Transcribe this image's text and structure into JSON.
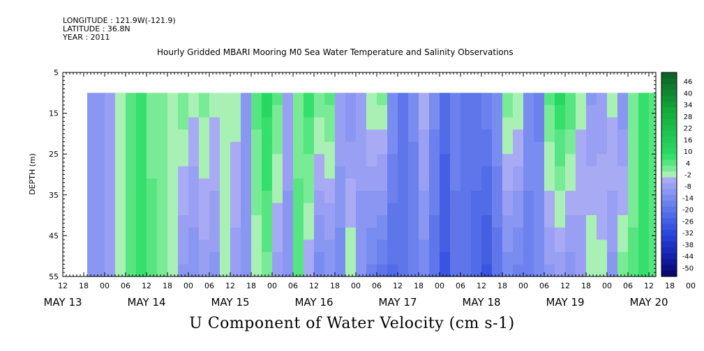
{
  "meta": {
    "longitude": "LONGITUDE : 121.9W(-121.9)",
    "latitude": "LATITUDE : 36.8N",
    "year": "YEAR : 2011"
  },
  "chart_data": {
    "type": "heatmap",
    "title": "Hourly Gridded MBARI Mooring M0 Sea Water Temperature and Salinity Observations",
    "xlabel": "",
    "ylabel": "DEPTH (m)",
    "bottom_label": "U Component of Water Velocity (cm s-1)",
    "y_ticks": [
      "5",
      "15",
      "25",
      "35",
      "45",
      "55"
    ],
    "y_range": [
      5,
      55
    ],
    "y_inverted": true,
    "x_hour_ticks": [
      "12",
      "18",
      "00",
      "06",
      "12",
      "18",
      "00",
      "06",
      "12",
      "18",
      "00",
      "06",
      "12",
      "18",
      "00",
      "06",
      "12",
      "18",
      "00",
      "06",
      "12",
      "18",
      "00",
      "06",
      "12",
      "18",
      "00",
      "06",
      "12",
      "18",
      "00",
      "06",
      "12"
    ],
    "x_day_labels": [
      "MAY 13",
      "MAY 14",
      "MAY 15",
      "MAY 16",
      "MAY 17",
      "MAY 18",
      "MAY 19",
      "MAY 20"
    ],
    "x_range": [
      "2011-05-13T12:00",
      "2011-05-20T14:00"
    ],
    "data_x_range": [
      "2011-05-13T19:00",
      "2011-05-20T12:00"
    ],
    "data_depth_range": [
      10,
      55
    ],
    "colorbar_labels": [
      "46",
      "40",
      "34",
      "28",
      "22",
      "16",
      "10",
      "4",
      "-2",
      "-8",
      "-14",
      "-20",
      "-26",
      "-32",
      "-38",
      "-44",
      "-50"
    ],
    "colorbar_levels": [
      52,
      49,
      46,
      43,
      40,
      37,
      34,
      31,
      28,
      25,
      22,
      19,
      16,
      13,
      10,
      7,
      4,
      1,
      -2,
      -5,
      -8,
      -11,
      -14,
      -17,
      -20,
      -23,
      -26,
      -29,
      -32,
      -35,
      -38,
      -41,
      -44,
      -47,
      -50
    ],
    "colors": {
      "strong_positive": "#0b6b2a",
      "positive": "#22c55e",
      "weak_positive": "#a8f0b4",
      "weak_negative": "#a3a6f5",
      "negative": "#6f86ef",
      "strong_negative": "#1d3ad6",
      "extreme_negative": "#0a0a80"
    },
    "series": [
      {
        "time": "2011-05-13T19:00",
        "surface": -6,
        "bottom": -6
      },
      {
        "time": "2011-05-14T00:00",
        "surface": -4,
        "bottom": -5
      },
      {
        "time": "2011-05-14T03:00",
        "surface": 4,
        "bottom": 2
      },
      {
        "time": "2011-05-14T06:00",
        "surface": 8,
        "bottom": 8
      },
      {
        "time": "2011-05-14T09:00",
        "surface": 10,
        "bottom": 12
      },
      {
        "time": "2011-05-14T12:00",
        "surface": 6,
        "bottom": 8
      },
      {
        "time": "2011-05-14T15:00",
        "surface": 4,
        "bottom": 4
      },
      {
        "time": "2011-05-14T18:00",
        "surface": 1,
        "bottom": 2
      },
      {
        "time": "2011-05-14T21:00",
        "surface": 6,
        "bottom": -6
      },
      {
        "time": "2011-05-15T00:00",
        "surface": 2,
        "bottom": -8
      },
      {
        "time": "2011-05-15T03:00",
        "surface": 5,
        "bottom": -4
      },
      {
        "time": "2011-05-15T06:00",
        "surface": 2,
        "bottom": -6
      },
      {
        "time": "2011-05-15T09:00",
        "surface": 4,
        "bottom": 2
      },
      {
        "time": "2011-05-15T12:00",
        "surface": 3,
        "bottom": -4
      },
      {
        "time": "2011-05-15T15:00",
        "surface": -6,
        "bottom": -8
      },
      {
        "time": "2011-05-15T18:00",
        "surface": 8,
        "bottom": 2
      },
      {
        "time": "2011-05-15T21:00",
        "surface": 14,
        "bottom": 6
      },
      {
        "time": "2011-05-16T00:00",
        "surface": 8,
        "bottom": -4
      },
      {
        "time": "2011-05-16T03:00",
        "surface": -4,
        "bottom": -6
      },
      {
        "time": "2011-05-16T06:00",
        "surface": 4,
        "bottom": 10
      },
      {
        "time": "2011-05-16T09:00",
        "surface": 12,
        "bottom": -2
      },
      {
        "time": "2011-05-16T12:00",
        "surface": 6,
        "bottom": -10
      },
      {
        "time": "2011-05-16T15:00",
        "surface": 8,
        "bottom": -8
      },
      {
        "time": "2011-05-16T18:00",
        "surface": -2,
        "bottom": -10
      },
      {
        "time": "2011-05-16T21:00",
        "surface": -8,
        "bottom": 4
      },
      {
        "time": "2011-05-17T00:00",
        "surface": -4,
        "bottom": -6
      },
      {
        "time": "2011-05-17T03:00",
        "surface": 4,
        "bottom": -12
      },
      {
        "time": "2011-05-17T06:00",
        "surface": 6,
        "bottom": -16
      },
      {
        "time": "2011-05-17T09:00",
        "surface": -8,
        "bottom": -18
      },
      {
        "time": "2011-05-17T12:00",
        "surface": -14,
        "bottom": -16
      },
      {
        "time": "2011-05-17T15:00",
        "surface": -10,
        "bottom": -14
      },
      {
        "time": "2011-05-17T18:00",
        "surface": 0,
        "bottom": -10
      },
      {
        "time": "2011-05-17T21:00",
        "surface": -10,
        "bottom": -16
      },
      {
        "time": "2011-05-18T00:00",
        "surface": -18,
        "bottom": -24
      },
      {
        "time": "2011-05-18T03:00",
        "surface": -12,
        "bottom": -16
      },
      {
        "time": "2011-05-18T06:00",
        "surface": -16,
        "bottom": -14
      },
      {
        "time": "2011-05-18T09:00",
        "surface": -14,
        "bottom": -20
      },
      {
        "time": "2011-05-18T12:00",
        "surface": -12,
        "bottom": -24
      },
      {
        "time": "2011-05-18T15:00",
        "surface": -8,
        "bottom": -16
      },
      {
        "time": "2011-05-18T18:00",
        "surface": 6,
        "bottom": -10
      },
      {
        "time": "2011-05-18T21:00",
        "surface": 4,
        "bottom": -12
      },
      {
        "time": "2011-05-19T00:00",
        "surface": -8,
        "bottom": -14
      },
      {
        "time": "2011-05-19T03:00",
        "surface": -12,
        "bottom": -8
      },
      {
        "time": "2011-05-19T06:00",
        "surface": 8,
        "bottom": -6
      },
      {
        "time": "2011-05-19T09:00",
        "surface": 14,
        "bottom": -4
      },
      {
        "time": "2011-05-19T12:00",
        "surface": 10,
        "bottom": -8
      },
      {
        "time": "2011-05-19T15:00",
        "surface": 2,
        "bottom": -4
      },
      {
        "time": "2011-05-19T18:00",
        "surface": -6,
        "bottom": 4
      },
      {
        "time": "2011-05-19T21:00",
        "surface": -4,
        "bottom": 2
      },
      {
        "time": "2011-05-20T00:00",
        "surface": 2,
        "bottom": -6
      },
      {
        "time": "2011-05-20T03:00",
        "surface": -8,
        "bottom": 6
      },
      {
        "time": "2011-05-20T06:00",
        "surface": 4,
        "bottom": 8
      },
      {
        "time": "2011-05-20T09:00",
        "surface": 10,
        "bottom": 12
      },
      {
        "time": "2011-05-20T12:00",
        "surface": 8,
        "bottom": 10
      }
    ]
  }
}
